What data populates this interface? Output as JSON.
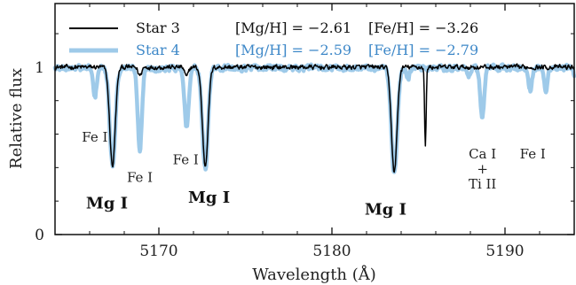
{
  "chart_data": {
    "type": "line",
    "xlabel": "Wavelength (Å)",
    "ylabel": "Relative flux",
    "xlim": [
      5164,
      5194
    ],
    "ylim": [
      0,
      1.38
    ],
    "x_ticks": [
      {
        "value": 5170,
        "label": "5170"
      },
      {
        "value": 5180,
        "label": "5180"
      },
      {
        "value": 5190,
        "label": "5190"
      }
    ],
    "y_ticks": [
      {
        "value": 0,
        "label": "0"
      },
      {
        "value": 1,
        "label": "1"
      }
    ],
    "grid": false,
    "legend_position": "top-left",
    "series": [
      {
        "name": "Star 3",
        "color": "#000000",
        "mg_h": "[Mg/H] = −2.61",
        "fe_h": "[Fe/H] = −3.26",
        "continuum": 1.0,
        "noise": 0.012,
        "lines": [
          {
            "center": 5167.32,
            "depth": 0.59,
            "width": 0.16
          },
          {
            "center": 5168.9,
            "depth": 0.05,
            "width": 0.1
          },
          {
            "center": 5172.68,
            "depth": 0.59,
            "width": 0.16
          },
          {
            "center": 5171.6,
            "depth": 0.06,
            "width": 0.1
          },
          {
            "center": 5183.6,
            "depth": 0.63,
            "width": 0.16
          },
          {
            "center": 5185.4,
            "depth": 0.48,
            "width": 0.045
          }
        ]
      },
      {
        "name": "Star 4",
        "color": "#9ecae9",
        "mg_h": "[Mg/H] = −2.59",
        "fe_h": "[Fe/H] = −2.79",
        "continuum": 0.995,
        "noise": 0.015,
        "lines": [
          {
            "center": 5166.3,
            "depth": 0.18,
            "width": 0.1
          },
          {
            "center": 5167.32,
            "depth": 0.58,
            "width": 0.16
          },
          {
            "center": 5168.9,
            "depth": 0.48,
            "width": 0.12
          },
          {
            "center": 5171.6,
            "depth": 0.35,
            "width": 0.12
          },
          {
            "center": 5172.68,
            "depth": 0.61,
            "width": 0.16
          },
          {
            "center": 5183.6,
            "depth": 0.64,
            "width": 0.17
          },
          {
            "center": 5184.4,
            "depth": 0.06,
            "width": 0.1
          },
          {
            "center": 5187.9,
            "depth": 0.05,
            "width": 0.1
          },
          {
            "center": 5188.68,
            "depth": 0.3,
            "width": 0.11
          },
          {
            "center": 5191.45,
            "depth": 0.14,
            "width": 0.11
          },
          {
            "center": 5192.35,
            "depth": 0.13,
            "width": 0.1
          },
          {
            "center": 5194.1,
            "depth": 0.1,
            "width": 0.1
          }
        ]
      }
    ],
    "annotations": [
      {
        "text": "Fe I",
        "x": 5166.3,
        "y": 0.555,
        "bold": false
      },
      {
        "text": "Fe I",
        "x": 5168.9,
        "y": 0.315,
        "bold": false
      },
      {
        "text": "Fe I",
        "x": 5171.55,
        "y": 0.42,
        "bold": false
      },
      {
        "text": "Fe I",
        "x": 5191.6,
        "y": 0.455,
        "bold": false
      },
      {
        "text": "Mg I",
        "x": 5167.0,
        "y": 0.155,
        "bold": true
      },
      {
        "text": "Mg I",
        "x": 5172.9,
        "y": 0.19,
        "bold": true
      },
      {
        "text": "Mg I",
        "x": 5183.1,
        "y": 0.12,
        "bold": true
      },
      {
        "text": "Ca I",
        "x": 5188.7,
        "y": 0.455,
        "bold": false
      },
      {
        "text": "+",
        "x": 5188.7,
        "y": 0.365,
        "bold": false
      },
      {
        "text": "Ti II",
        "x": 5188.7,
        "y": 0.275,
        "bold": false
      }
    ]
  }
}
